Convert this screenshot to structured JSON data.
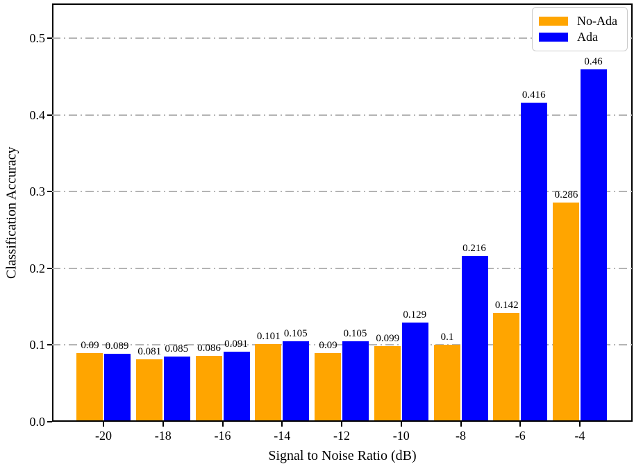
{
  "chart_data": {
    "type": "bar",
    "title": "",
    "xlabel": "Signal to Noise Ratio (dB)",
    "ylabel": "Classification Accuracy",
    "categories": [
      "-20",
      "-18",
      "-16",
      "-14",
      "-12",
      "-10",
      "-8",
      "-6",
      "-4"
    ],
    "series": [
      {
        "name": "No-Ada",
        "color": "#FFA500",
        "values": [
          0.09,
          0.081,
          0.086,
          0.101,
          0.09,
          0.099,
          0.1,
          0.142,
          0.286
        ]
      },
      {
        "name": "Ada",
        "color": "#0000FF",
        "values": [
          0.089,
          0.085,
          0.091,
          0.105,
          0.105,
          0.129,
          0.216,
          0.416,
          0.46
        ]
      }
    ],
    "yticks": [
      "0.0",
      "0.1",
      "0.2",
      "0.3",
      "0.4",
      "0.5"
    ],
    "ylim": [
      0,
      0.5457
    ],
    "grid": "horizontal dash-dot gray, behind bars",
    "gridline_color": "#b4b4b4",
    "legend_position": "upper right",
    "bar_value_labels_shown": true
  }
}
